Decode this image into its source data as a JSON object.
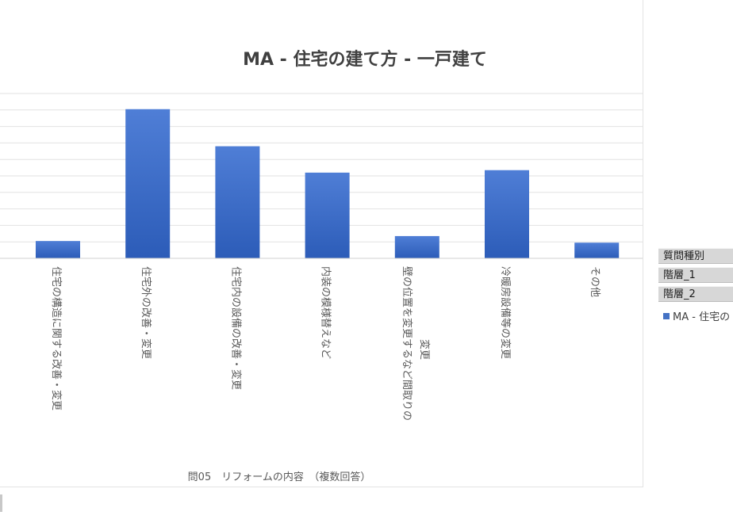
{
  "chart_data": {
    "type": "bar",
    "title": "MA - 住宅の建て方 - 一戸建て",
    "xlabel": "問05　リフォームの内容　（複数回答）",
    "ylabel": "",
    "categories": [
      "住宅の構造に関する改善・変更",
      "住宅外の改善・変更",
      "住宅内の設備の改善・変更",
      "内装の模様替えなど",
      "壁の位置を変更するなど間取りの変更",
      "冷暖房設備等の変更",
      "その他"
    ],
    "category_lines": [
      [
        "住宅の構造に関する改善・変更"
      ],
      [
        "住宅外の改善・変更"
      ],
      [
        "住宅内の設備の改善・変更"
      ],
      [
        "内装の模様替えなど"
      ],
      [
        "壁の位置を変更するなど間取りの",
        "変更"
      ],
      [
        "冷暖房設備等の変更"
      ],
      [
        "その他"
      ]
    ],
    "values": [
      10.5,
      90.5,
      68,
      52,
      13.5,
      53.5,
      9.5
    ],
    "ylim": [
      0,
      100
    ],
    "grid": true,
    "bar_color": "#4472c4"
  },
  "side_panel": {
    "fields": [
      "質問種別",
      "階層_1",
      "階層_2"
    ],
    "legend_label": "MA - 住宅の"
  }
}
